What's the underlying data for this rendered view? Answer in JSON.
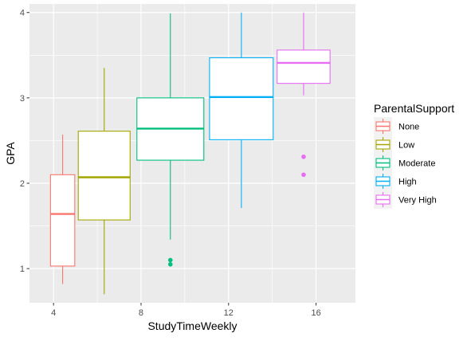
{
  "chart_data": {
    "type": "boxplot",
    "xlabel": "StudyTimeWeekly",
    "ylabel": "GPA",
    "xlim": [
      2.9,
      17.8
    ],
    "ylim": [
      0.6,
      4.1
    ],
    "x_ticks": [
      4,
      8,
      12,
      16
    ],
    "y_ticks": [
      1,
      2,
      3,
      4
    ],
    "grid": true,
    "legend_title": "ParentalSupport",
    "legend_position": "right",
    "series": [
      {
        "name": "None",
        "color": "#F8766D",
        "x_min": 3.86,
        "x_max": 4.97,
        "whisker_low": 0.82,
        "q1": 1.03,
        "median": 1.64,
        "q3": 2.1,
        "whisker_high": 2.57,
        "outliers": []
      },
      {
        "name": "Low",
        "color": "#A3A500",
        "x_min": 5.13,
        "x_max": 7.5,
        "whisker_low": 0.7,
        "q1": 1.57,
        "median": 2.07,
        "q3": 2.61,
        "whisker_high": 3.35,
        "outliers": []
      },
      {
        "name": "Moderate",
        "color": "#00BF7D",
        "x_min": 7.81,
        "x_max": 10.87,
        "whisker_low": 1.34,
        "q1": 2.27,
        "median": 2.64,
        "q3": 3.0,
        "whisker_high": 3.99,
        "outliers": [
          1.1,
          1.05
        ]
      },
      {
        "name": "High",
        "color": "#00B0F6",
        "x_min": 11.13,
        "x_max": 14.04,
        "whisker_low": 1.71,
        "q1": 2.51,
        "median": 3.01,
        "q3": 3.47,
        "whisker_high": 4.0,
        "outliers": []
      },
      {
        "name": "Very High",
        "color": "#E76BF3",
        "x_min": 14.22,
        "x_max": 16.64,
        "whisker_low": 3.03,
        "q1": 3.17,
        "median": 3.41,
        "q3": 3.56,
        "whisker_high": 4.0,
        "outliers": [
          2.31,
          2.1
        ]
      }
    ]
  }
}
